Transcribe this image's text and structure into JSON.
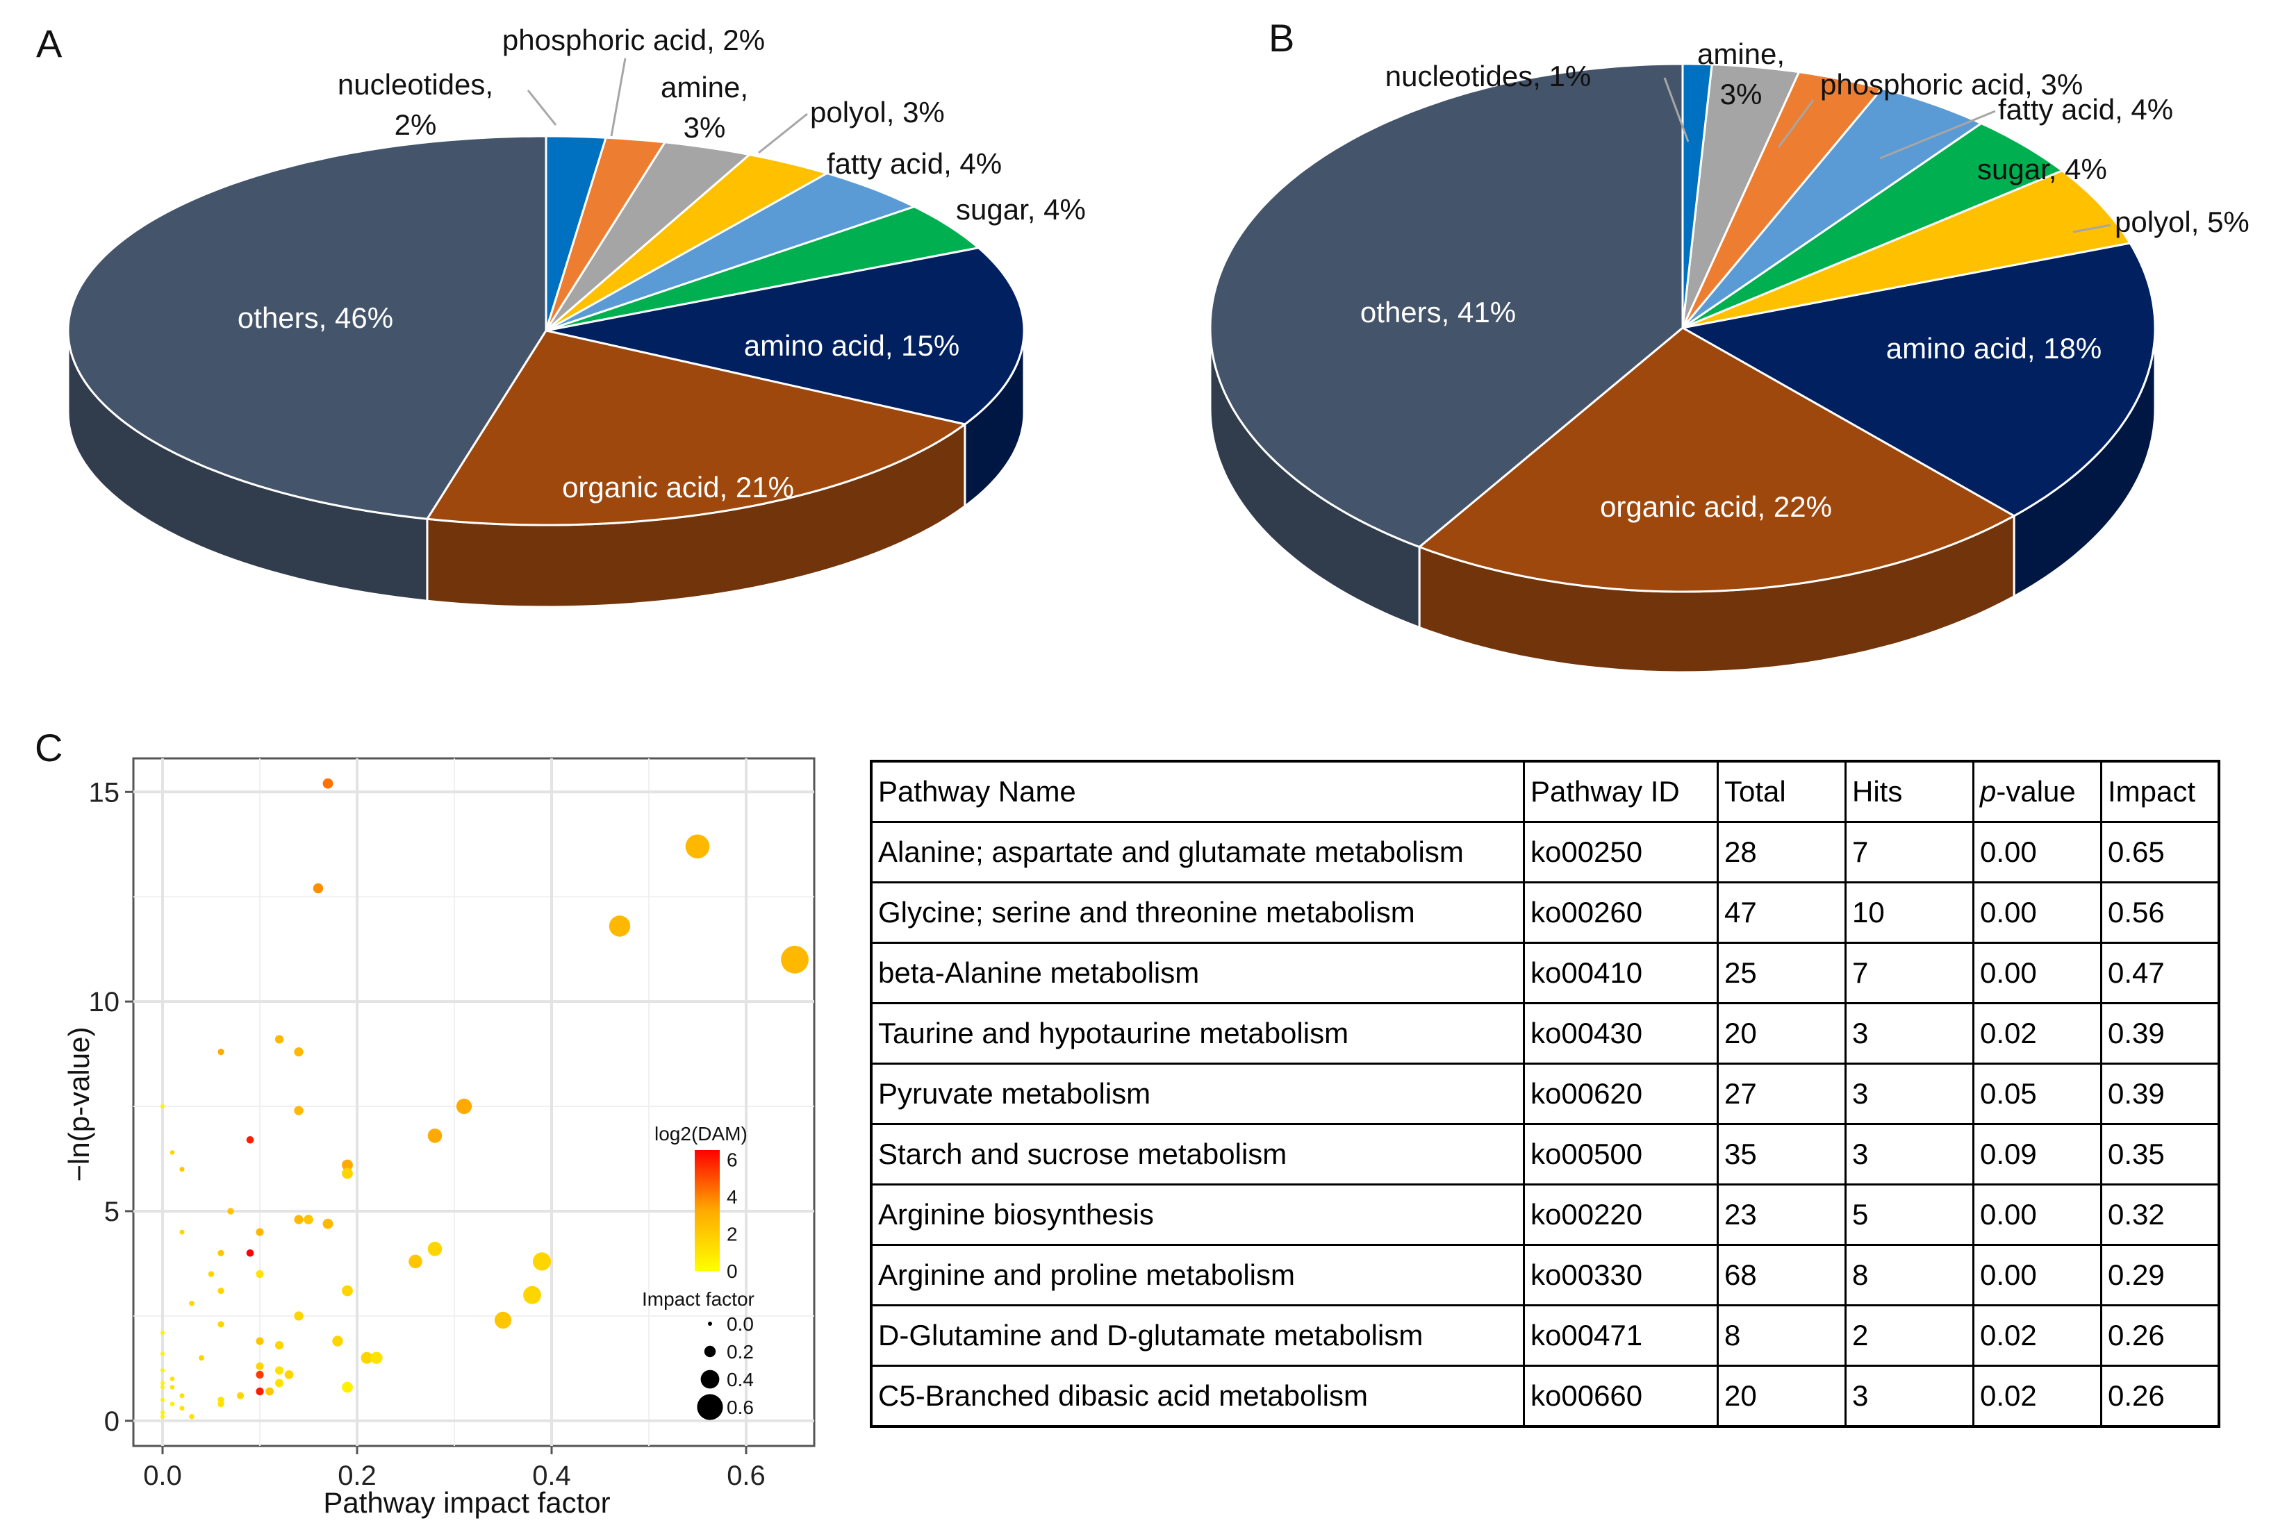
{
  "panels": {
    "a": "A",
    "b": "B",
    "c": "C"
  },
  "colors": {
    "others": "#44546a",
    "organic_acid": "#9e480e",
    "amino_acid": "#00205f",
    "sugar": "#00b050",
    "fatty_acid": "#5b9bd5",
    "polyol": "#ffc000",
    "amine": "#a5a5a5",
    "phosphoric_acid": "#ed7d31",
    "nucleotides": "#0070c0"
  },
  "chart_data": [
    {
      "id": "pie-a",
      "type": "pie",
      "title": "A",
      "slices": [
        {
          "key": "nucleotides",
          "label": "nucleotides,",
          "label2": "2%",
          "value": 2,
          "color": "#0070c0",
          "inside": false
        },
        {
          "key": "phosphoric_acid",
          "label": "phosphoric acid, 2%",
          "value": 2,
          "color": "#ed7d31",
          "inside": false
        },
        {
          "key": "amine",
          "label": "amine,",
          "label2": "3%",
          "value": 3,
          "color": "#a5a5a5",
          "inside": false
        },
        {
          "key": "polyol",
          "label": "polyol, 3%",
          "value": 3,
          "color": "#ffc000",
          "inside": false
        },
        {
          "key": "fatty_acid",
          "label": "fatty acid, 4%",
          "value": 4,
          "color": "#5b9bd5",
          "inside": false
        },
        {
          "key": "sugar",
          "label": "sugar, 4%",
          "value": 4,
          "color": "#00b050",
          "inside": false
        },
        {
          "key": "amino_acid",
          "label": "amino acid, 15%",
          "value": 15,
          "color": "#00205f",
          "inside": true
        },
        {
          "key": "organic_acid",
          "label": "organic acid, 21%",
          "value": 21,
          "color": "#9e480e",
          "inside": true
        },
        {
          "key": "others",
          "label": "others, 46%",
          "value": 46,
          "color": "#44546a",
          "inside": true
        }
      ]
    },
    {
      "id": "pie-b",
      "type": "pie",
      "title": "B",
      "slices": [
        {
          "key": "nucleotides",
          "label": "nucleotides, 1%",
          "value": 1,
          "color": "#0070c0",
          "inside": false
        },
        {
          "key": "amine",
          "label": "amine,",
          "label2": "3%",
          "value": 3,
          "color": "#a5a5a5",
          "inside": false
        },
        {
          "key": "phosphoric_acid",
          "label": "phosphoric acid, 3%",
          "value": 3,
          "color": "#ed7d31",
          "inside": false
        },
        {
          "key": "fatty_acid",
          "label": "fatty acid, 4%",
          "value": 4,
          "color": "#5b9bd5",
          "inside": false
        },
        {
          "key": "sugar",
          "label": "sugar, 4%",
          "value": 4,
          "color": "#00b050",
          "inside": false
        },
        {
          "key": "polyol",
          "label": "polyol, 5%",
          "value": 5,
          "color": "#ffc000",
          "inside": false
        },
        {
          "key": "amino_acid",
          "label": "amino acid, 18%",
          "value": 18,
          "color": "#00205f",
          "inside": true
        },
        {
          "key": "organic_acid",
          "label": "organic acid, 22%",
          "value": 22,
          "color": "#9e480e",
          "inside": true
        },
        {
          "key": "others",
          "label": "others, 41%",
          "value": 41,
          "color": "#44546a",
          "inside": true
        }
      ]
    },
    {
      "id": "scatter-c",
      "type": "scatter",
      "title": "C",
      "xlabel": "Pathway impact factor",
      "ylabel": "−ln(p-value)",
      "xlim": [
        -0.03,
        0.67
      ],
      "ylim": [
        -0.6,
        15.8
      ],
      "xticks": [
        0.0,
        0.2,
        0.4,
        0.6
      ],
      "xtick_labels": [
        "0.0",
        "0.2",
        "0.4",
        "0.6"
      ],
      "yticks": [
        0,
        5,
        10,
        15
      ],
      "ytick_labels": [
        "0",
        "5",
        "10",
        "15"
      ],
      "grid": true,
      "legend": {
        "color_title": "log2(DAM)",
        "color_ticks": [
          "6",
          "4",
          "2",
          "0"
        ],
        "size_title": "Impact factor",
        "size_entries": [
          {
            "label": "0.0",
            "impact": 0.0
          },
          {
            "label": "0.2",
            "impact": 0.2
          },
          {
            "label": "0.4",
            "impact": 0.4
          },
          {
            "label": "0.6",
            "impact": 0.6
          }
        ],
        "placement": "right"
      },
      "points": [
        {
          "x": 0.17,
          "y": 15.2,
          "log2": 4.0
        },
        {
          "x": 0.55,
          "y": 13.7,
          "log2": 2.5
        },
        {
          "x": 0.16,
          "y": 12.7,
          "log2": 3.5
        },
        {
          "x": 0.47,
          "y": 11.8,
          "log2": 2.5
        },
        {
          "x": 0.65,
          "y": 11.0,
          "log2": 2.5
        },
        {
          "x": 0.12,
          "y": 9.1,
          "log2": 2.5
        },
        {
          "x": 0.06,
          "y": 8.8,
          "log2": 3.0
        },
        {
          "x": 0.14,
          "y": 8.8,
          "log2": 2.5
        },
        {
          "x": 0.31,
          "y": 7.5,
          "log2": 3.0
        },
        {
          "x": 0.14,
          "y": 7.4,
          "log2": 2.5
        },
        {
          "x": 0.0,
          "y": 7.5,
          "log2": 0.5
        },
        {
          "x": 0.09,
          "y": 6.7,
          "log2": 5.5
        },
        {
          "x": 0.28,
          "y": 6.8,
          "log2": 3.0
        },
        {
          "x": 0.01,
          "y": 6.4,
          "log2": 1.5
        },
        {
          "x": 0.19,
          "y": 6.1,
          "log2": 3.0
        },
        {
          "x": 0.02,
          "y": 6.0,
          "log2": 2.0
        },
        {
          "x": 0.19,
          "y": 5.9,
          "log2": 1.5
        },
        {
          "x": 0.07,
          "y": 5.0,
          "log2": 2.0
        },
        {
          "x": 0.14,
          "y": 4.8,
          "log2": 2.5
        },
        {
          "x": 0.15,
          "y": 4.8,
          "log2": 2.0
        },
        {
          "x": 0.17,
          "y": 4.7,
          "log2": 2.5
        },
        {
          "x": 0.1,
          "y": 4.5,
          "log2": 2.5
        },
        {
          "x": 0.02,
          "y": 4.5,
          "log2": 1.5
        },
        {
          "x": 0.09,
          "y": 4.0,
          "log2": 6.0
        },
        {
          "x": 0.06,
          "y": 4.0,
          "log2": 2.0
        },
        {
          "x": 0.28,
          "y": 4.1,
          "log2": 1.5
        },
        {
          "x": 0.26,
          "y": 3.8,
          "log2": 2.0
        },
        {
          "x": 0.39,
          "y": 3.8,
          "log2": 1.5
        },
        {
          "x": 0.05,
          "y": 3.5,
          "log2": 1.5
        },
        {
          "x": 0.1,
          "y": 3.5,
          "log2": 1.0
        },
        {
          "x": 0.06,
          "y": 3.1,
          "log2": 1.5
        },
        {
          "x": 0.19,
          "y": 3.1,
          "log2": 1.5
        },
        {
          "x": 0.38,
          "y": 3.0,
          "log2": 1.5
        },
        {
          "x": 0.03,
          "y": 2.8,
          "log2": 1.5
        },
        {
          "x": 0.14,
          "y": 2.5,
          "log2": 1.5
        },
        {
          "x": 0.35,
          "y": 2.4,
          "log2": 2.0
        },
        {
          "x": 0.06,
          "y": 2.3,
          "log2": 1.5
        },
        {
          "x": 0.0,
          "y": 2.1,
          "log2": 0.5
        },
        {
          "x": 0.18,
          "y": 1.9,
          "log2": 1.5
        },
        {
          "x": 0.1,
          "y": 1.9,
          "log2": 2.0
        },
        {
          "x": 0.12,
          "y": 1.8,
          "log2": 1.5
        },
        {
          "x": 0.0,
          "y": 1.6,
          "log2": 0.5
        },
        {
          "x": 0.22,
          "y": 1.5,
          "log2": 1.0
        },
        {
          "x": 0.21,
          "y": 1.5,
          "log2": 1.5
        },
        {
          "x": 0.04,
          "y": 1.5,
          "log2": 1.5
        },
        {
          "x": 0.1,
          "y": 1.3,
          "log2": 1.5
        },
        {
          "x": 0.12,
          "y": 1.2,
          "log2": 1.0
        },
        {
          "x": 0.0,
          "y": 1.2,
          "log2": 0.5
        },
        {
          "x": 0.1,
          "y": 1.1,
          "log2": 5.0
        },
        {
          "x": 0.13,
          "y": 1.1,
          "log2": 1.5
        },
        {
          "x": 0.01,
          "y": 1.0,
          "log2": 1.0
        },
        {
          "x": 0.12,
          "y": 0.9,
          "log2": 1.0
        },
        {
          "x": 0.0,
          "y": 0.9,
          "log2": 0.5
        },
        {
          "x": 0.0,
          "y": 0.8,
          "log2": 0.5
        },
        {
          "x": 0.19,
          "y": 0.8,
          "log2": 0.5
        },
        {
          "x": 0.01,
          "y": 0.8,
          "log2": 1.0
        },
        {
          "x": 0.1,
          "y": 0.7,
          "log2": 5.5
        },
        {
          "x": 0.11,
          "y": 0.7,
          "log2": 2.0
        },
        {
          "x": 0.08,
          "y": 0.6,
          "log2": 1.5
        },
        {
          "x": 0.02,
          "y": 0.6,
          "log2": 1.0
        },
        {
          "x": 0.06,
          "y": 0.5,
          "log2": 1.0
        },
        {
          "x": 0.0,
          "y": 0.5,
          "log2": 0.5
        },
        {
          "x": 0.06,
          "y": 0.4,
          "log2": 1.0
        },
        {
          "x": 0.01,
          "y": 0.4,
          "log2": 0.5
        },
        {
          "x": 0.02,
          "y": 0.3,
          "log2": 1.0
        },
        {
          "x": 0.0,
          "y": 0.2,
          "log2": 0.5
        },
        {
          "x": 0.03,
          "y": 0.1,
          "log2": 1.0
        },
        {
          "x": 0.0,
          "y": 0.1,
          "log2": 0.5
        }
      ]
    },
    {
      "id": "table-c",
      "type": "table",
      "columns": [
        "Pathway Name",
        "Pathway ID",
        "Total",
        "Hits",
        "p-value",
        "Impact"
      ],
      "rows": [
        [
          "Alanine; aspartate and glutamate metabolism",
          "ko00250",
          "28",
          "7",
          "0.00",
          "0.65"
        ],
        [
          "Glycine; serine and threonine metabolism",
          "ko00260",
          "47",
          "10",
          "0.00",
          "0.56"
        ],
        [
          "beta-Alanine metabolism",
          "ko00410",
          "25",
          "7",
          "0.00",
          "0.47"
        ],
        [
          "Taurine and hypotaurine metabolism",
          "ko00430",
          "20",
          "3",
          "0.02",
          "0.39"
        ],
        [
          "Pyruvate metabolism",
          "ko00620",
          "27",
          "3",
          "0.05",
          "0.39"
        ],
        [
          "Starch and sucrose metabolism",
          "ko00500",
          "35",
          "3",
          "0.09",
          "0.35"
        ],
        [
          "Arginine biosynthesis",
          "ko00220",
          "23",
          "5",
          "0.00",
          "0.32"
        ],
        [
          "Arginine and proline metabolism",
          "ko00330",
          "68",
          "8",
          "0.00",
          "0.29"
        ],
        [
          "D-Glutamine and D-glutamate metabolism",
          "ko00471",
          "8",
          "2",
          "0.02",
          "0.26"
        ],
        [
          "C5-Branched dibasic acid metabolism",
          "ko00660",
          "20",
          "3",
          "0.02",
          "0.26"
        ]
      ]
    }
  ]
}
